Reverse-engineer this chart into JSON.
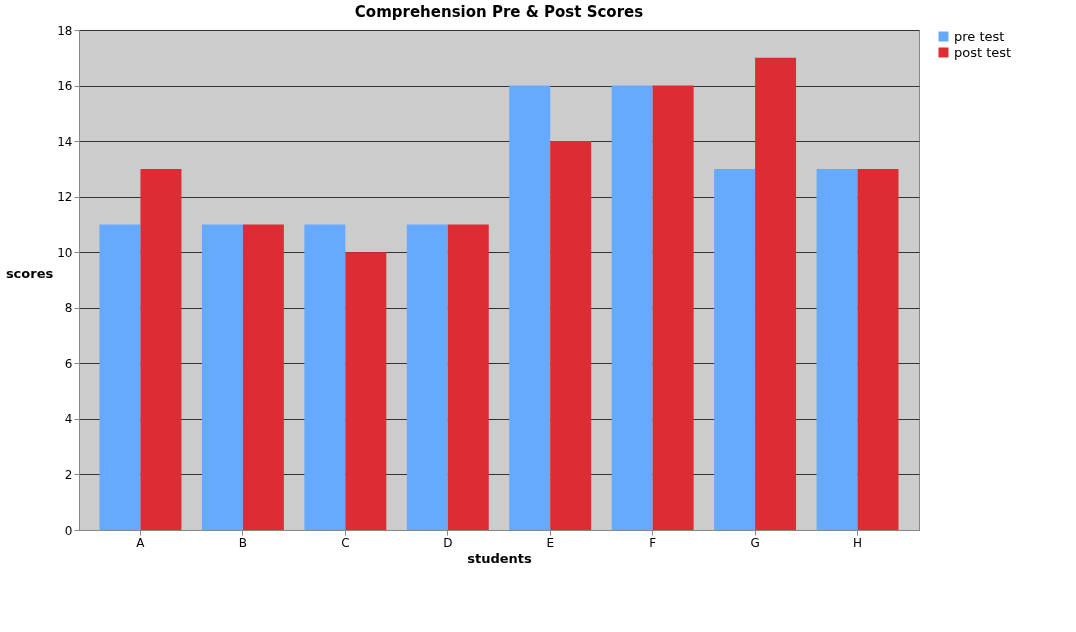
{
  "chart_data": {
    "type": "bar",
    "title": "Comprehension Pre & Post Scores",
    "xlabel": "students",
    "ylabel": "scores",
    "categories": [
      "A",
      "B",
      "C",
      "D",
      "E",
      "F",
      "G",
      "H"
    ],
    "series": [
      {
        "name": "pre test",
        "color": "#66aaff",
        "values": [
          11,
          11,
          11,
          11,
          16,
          16,
          13,
          13
        ]
      },
      {
        "name": "post test",
        "color": "#dd2c33",
        "values": [
          13,
          11,
          10,
          11,
          14,
          16,
          17,
          13
        ]
      }
    ],
    "ylim": [
      0,
      18
    ],
    "yticks": [
      0,
      2,
      4,
      6,
      8,
      10,
      12,
      14,
      16,
      18
    ],
    "grid": "y",
    "legend": "right"
  }
}
